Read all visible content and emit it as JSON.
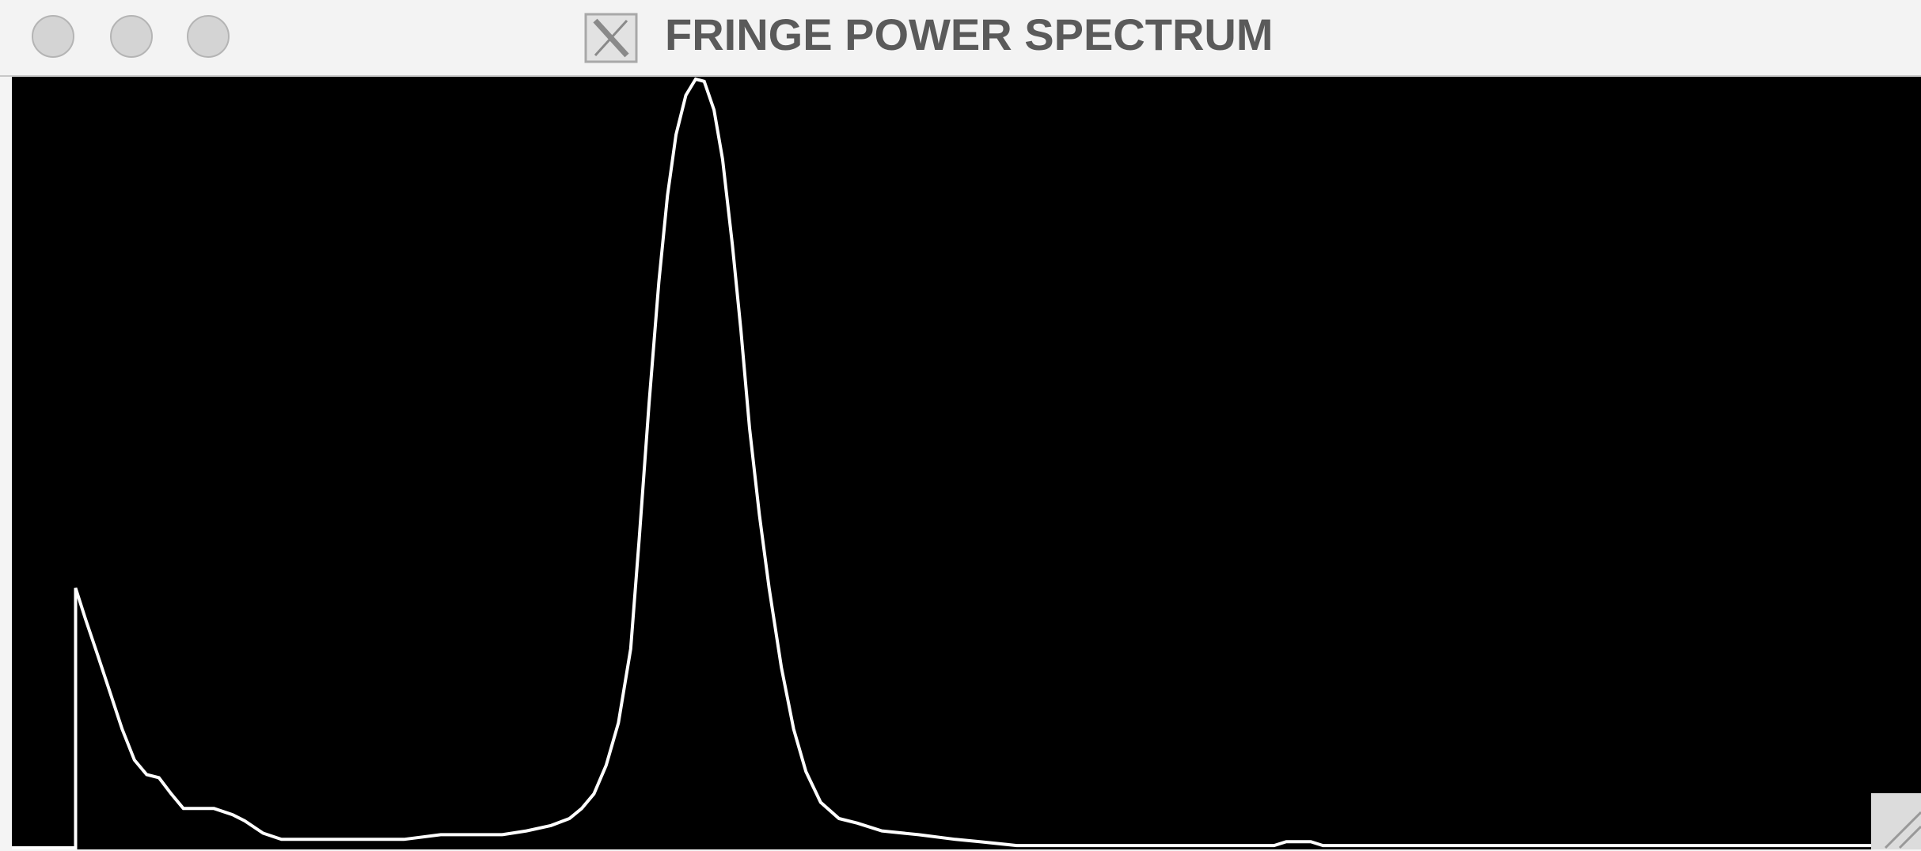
{
  "window": {
    "title": "FRINGE POWER SPECTRUM"
  },
  "chart_data": {
    "type": "line",
    "x": [
      0,
      52,
      52,
      60,
      70,
      80,
      90,
      100,
      110,
      120,
      130,
      140,
      165,
      180,
      190,
      205,
      220,
      320,
      350,
      400,
      420,
      440,
      455,
      465,
      475,
      485,
      495,
      505,
      512,
      520,
      528,
      535,
      542,
      550,
      558,
      565,
      573,
      580,
      588,
      595,
      602,
      610,
      618,
      628,
      638,
      648,
      660,
      675,
      690,
      710,
      740,
      770,
      790,
      820,
      1030,
      1040,
      1060,
      1070,
      1550
    ],
    "series": [
      {
        "color": "#ffffff",
        "values": [
          0,
          0,
          33.7,
          29.7,
          25.0,
          20.2,
          15.4,
          11.4,
          9.5,
          9.1,
          7.0,
          5.1,
          5.1,
          4.3,
          3.5,
          1.9,
          1.1,
          1.1,
          1.7,
          1.7,
          2.2,
          2.9,
          3.8,
          5.1,
          7.0,
          10.7,
          16.2,
          25.8,
          40.1,
          57.6,
          73.4,
          84.6,
          92.5,
          97.6,
          99.7,
          99.4,
          95.7,
          89.3,
          78.2,
          67.1,
          54.4,
          43.2,
          33.7,
          23.4,
          15.4,
          9.9,
          5.9,
          3.8,
          3.2,
          2.2,
          1.7,
          1.1,
          0.8,
          0.3,
          0.3,
          0.8,
          0.8,
          0.3,
          0.3
        ]
      }
    ],
    "xlim": [
      0,
      1558
    ],
    "ylim": [
      0,
      100
    ],
    "background": "#000000"
  }
}
